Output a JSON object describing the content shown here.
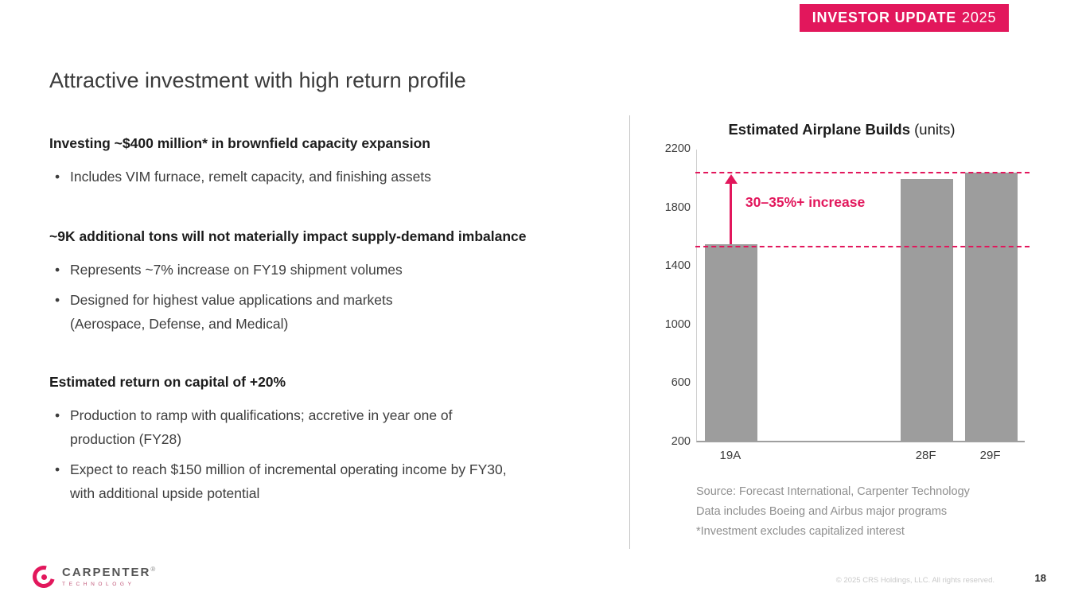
{
  "banner": {
    "label_main": "INVESTOR UPDATE",
    "label_year": "2025"
  },
  "slide": {
    "title": "Attractive investment with high return profile",
    "page_number": "18",
    "copyright": "© 2025 CRS Holdings, LLC. All rights reserved."
  },
  "left": {
    "sections": [
      {
        "heading": "Investing ~$400 million* in brownfield capacity expansion",
        "bullets": [
          "Includes VIM furnace, remelt capacity, and finishing assets"
        ]
      },
      {
        "heading": "~9K additional tons will not materially impact supply-demand imbalance",
        "bullets": [
          "Represents ~7% increase on FY19 shipment volumes",
          "Designed for highest value applications and markets\n(Aerospace, Defense, and Medical)"
        ]
      },
      {
        "heading": "Estimated return on capital of +20%",
        "bullets": [
          "Production to ramp with qualifications; accretive in year one of\nproduction (FY28)",
          "Expect to reach $150 million of incremental operating income by FY30,\nwith additional upside potential"
        ]
      }
    ]
  },
  "chart_data": {
    "type": "bar",
    "title": "Estimated Airplane Builds",
    "title_suffix": " (units)",
    "categories": [
      "19A",
      "28F",
      "29F"
    ],
    "values": [
      1540,
      1990,
      2030
    ],
    "ylim": [
      200,
      2200
    ],
    "yticks": [
      2200,
      1800,
      1400,
      1000,
      600,
      200
    ],
    "dashed_lines": [
      1540,
      2050
    ],
    "annotation": "30–35%+ increase",
    "bar_color": "#9d9d9d",
    "accent_color": "#e2175c",
    "xlabel": "",
    "ylabel": "",
    "legend": "none",
    "grid": false
  },
  "source_notes": [
    "Source: Forecast International, Carpenter Technology",
    "Data includes Boeing and Airbus major programs",
    "*Investment excludes capitalized interest"
  ],
  "footer": {
    "logo_word": "CARPENTER",
    "logo_registered": "®",
    "logo_sub": "TECHNOLOGY"
  }
}
